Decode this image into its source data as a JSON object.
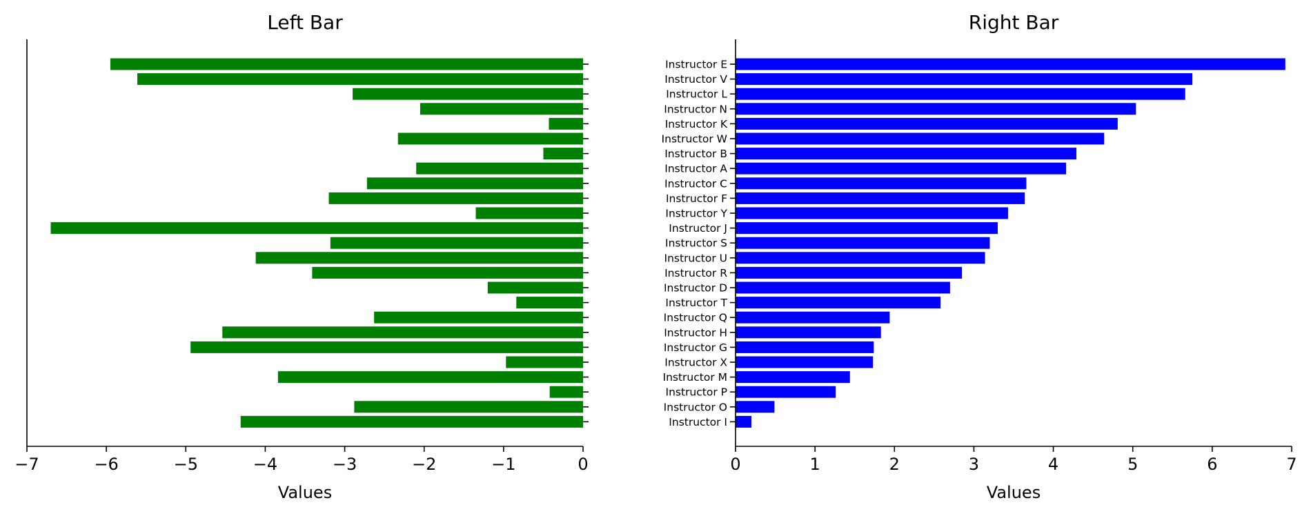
{
  "chart_data": [
    {
      "type": "bar",
      "orientation": "horizontal",
      "title": "Left Bar",
      "xlabel": "Values",
      "xlim": [
        -7,
        0
      ],
      "xticks": [
        "−7",
        "−6",
        "−5",
        "−4",
        "−3",
        "−2",
        "−1",
        "0"
      ],
      "bar_color": "#008000",
      "values": [
        -5.95,
        -5.61,
        -2.9,
        -2.05,
        -0.43,
        -2.33,
        -0.5,
        -2.1,
        -2.72,
        -3.2,
        -1.35,
        -6.7,
        -3.18,
        -4.12,
        -3.41,
        -1.2,
        -0.84,
        -2.63,
        -4.54,
        -4.94,
        -0.97,
        -3.84,
        -0.42,
        -2.88,
        -4.31
      ]
    },
    {
      "type": "bar",
      "orientation": "horizontal",
      "title": "Right Bar",
      "xlabel": "Values",
      "xlim": [
        0,
        7
      ],
      "xticks": [
        "0",
        "1",
        "2",
        "3",
        "4",
        "5",
        "6",
        "7"
      ],
      "bar_color": "#0000ff",
      "categories": [
        "Instructor E",
        "Instructor V",
        "Instructor L",
        "Instructor N",
        "Instructor K",
        "Instructor W",
        "Instructor B",
        "Instructor A",
        "Instructor C",
        "Instructor F",
        "Instructor Y",
        "Instructor J",
        "Instructor S",
        "Instructor U",
        "Instructor R",
        "Instructor D",
        "Instructor T",
        "Instructor Q",
        "Instructor H",
        "Instructor G",
        "Instructor X",
        "Instructor M",
        "Instructor P",
        "Instructor O",
        "Instructor I"
      ],
      "values": [
        6.92,
        5.75,
        5.66,
        5.04,
        4.81,
        4.64,
        4.29,
        4.16,
        3.66,
        3.64,
        3.43,
        3.3,
        3.2,
        3.14,
        2.85,
        2.7,
        2.58,
        1.94,
        1.83,
        1.74,
        1.73,
        1.44,
        1.26,
        0.49,
        0.2
      ]
    }
  ]
}
